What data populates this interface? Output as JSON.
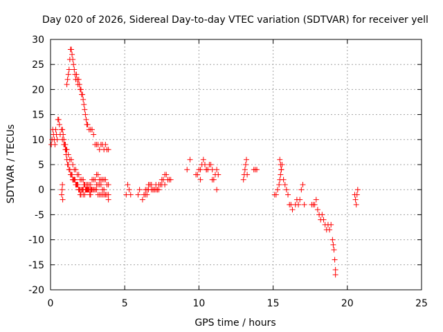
{
  "chart_data": {
    "type": "scatter",
    "title": "Day 020 of 2026, Sidereal Day-to-day VTEC variation (SDTVAR) for receiver yell",
    "xlabel": "GPS time / hours",
    "ylabel": "SDTVAR / TECUs",
    "xlim": [
      0,
      25
    ],
    "ylim": [
      -20,
      30
    ],
    "xticks": [
      0,
      5,
      10,
      15,
      20,
      25
    ],
    "yticks": [
      -20,
      -15,
      -10,
      -5,
      0,
      5,
      10,
      15,
      20,
      25,
      30
    ],
    "grid": true,
    "marker": "+",
    "color": "#ff0000",
    "series": [
      {
        "name": "SDTVAR",
        "x": [
          0.05,
          0.1,
          0.15,
          0.2,
          0.25,
          0.3,
          0.35,
          0.4,
          0.45,
          0.5,
          0.55,
          0.6,
          0.65,
          0.75,
          0.8,
          0.85,
          0.9,
          0.95,
          1.0,
          1.05,
          1.1,
          1.15,
          1.2,
          1.25,
          1.3,
          1.35,
          1.4,
          1.45,
          1.5,
          1.55,
          1.6,
          1.65,
          1.7,
          1.75,
          1.8,
          1.85,
          1.9,
          1.95,
          2.0,
          2.05,
          2.1,
          2.15,
          2.2,
          2.25,
          2.3,
          2.35,
          2.4,
          2.45,
          2.5,
          2.55,
          2.6,
          2.65,
          2.7,
          2.75,
          2.8,
          2.9,
          3.0,
          3.1,
          3.2,
          3.3,
          3.4,
          3.5,
          3.6,
          3.7,
          3.8,
          3.9,
          1.1,
          1.15,
          1.2,
          1.25,
          1.3,
          1.35,
          1.4,
          1.45,
          1.5,
          1.55,
          1.6,
          1.65,
          1.7,
          1.75,
          1.8,
          1.85,
          1.9,
          1.95,
          2.0,
          2.05,
          2.1,
          2.15,
          2.2,
          2.25,
          2.3,
          2.35,
          2.4,
          2.45,
          2.5,
          2.6,
          2.7,
          2.8,
          2.9,
          3.0,
          3.1,
          3.2,
          3.3,
          3.4,
          3.5,
          3.6,
          3.7,
          3.8,
          3.9,
          0.8,
          0.9,
          1.0,
          1.05,
          1.1,
          1.2,
          1.3,
          1.4,
          1.5,
          1.6,
          1.7,
          1.8,
          1.9,
          2.0,
          2.1,
          2.2,
          2.3,
          2.4,
          2.5,
          2.6,
          2.7,
          2.8,
          2.9,
          3.0,
          3.1,
          3.2,
          3.3,
          3.4,
          3.5,
          3.6,
          3.7,
          3.8,
          3.9,
          1.5,
          1.6,
          1.7,
          1.8,
          1.9,
          2.0,
          2.1,
          2.2,
          2.3,
          2.4,
          2.5,
          2.6,
          2.7,
          2.8,
          2.9,
          3.0,
          3.1,
          3.2,
          3.3,
          3.4,
          3.5,
          3.6,
          3.7,
          3.8,
          3.9,
          0.75,
          0.78,
          0.8,
          0.82,
          5.1,
          5.2,
          5.3,
          5.4,
          5.9,
          6.0,
          6.2,
          6.3,
          6.4,
          6.5,
          6.6,
          6.7,
          6.8,
          6.9,
          7.0,
          7.1,
          7.2,
          7.3,
          7.4,
          7.5,
          7.6,
          7.7,
          7.8,
          7.9,
          8.0,
          8.1,
          6.3,
          6.5,
          6.7,
          6.9,
          7.1,
          7.3,
          7.5,
          7.7,
          6.4,
          6.6,
          6.8,
          7.0,
          7.2,
          9.2,
          9.4,
          9.8,
          9.9,
          10.0,
          10.1,
          10.2,
          10.3,
          10.4,
          10.5,
          10.6,
          10.7,
          10.8,
          10.9,
          11.0,
          11.1,
          11.2,
          11.3,
          10.1,
          10.5,
          10.9,
          11.2,
          13.0,
          13.05,
          13.1,
          13.15,
          13.2,
          13.25,
          13.7,
          13.8,
          13.9,
          15.1,
          15.2,
          15.3,
          15.4,
          15.45,
          15.5,
          15.55,
          15.6,
          15.7,
          15.8,
          15.9,
          16.0,
          16.1,
          16.2,
          16.3,
          16.5,
          16.6,
          16.7,
          16.8,
          16.9,
          17.0,
          17.1,
          15.45,
          15.5,
          15.55,
          17.6,
          17.7,
          17.8,
          17.9,
          18.0,
          18.1,
          18.2,
          18.3,
          18.4,
          18.5,
          18.6,
          18.7,
          18.8,
          18.9,
          19.0,
          19.05,
          19.1,
          19.15,
          19.2,
          19.2,
          20.5,
          20.55,
          20.6,
          20.65,
          20.7
        ],
        "y": [
          9,
          10,
          12,
          11,
          10,
          9,
          12,
          11,
          10,
          14,
          14,
          13,
          11,
          12,
          12,
          11,
          10,
          9,
          8,
          7,
          6,
          5,
          5,
          4,
          4,
          3,
          3,
          3,
          2,
          2,
          2,
          2,
          1,
          1,
          1,
          1,
          0,
          0,
          -1,
          -1,
          0,
          0,
          0,
          1,
          1,
          0,
          0,
          0,
          0,
          0,
          0,
          -1,
          -1,
          0,
          0,
          0,
          0,
          1,
          1,
          1,
          1,
          0,
          0,
          -1,
          -1,
          -1,
          21,
          22,
          23,
          24,
          26,
          28,
          28,
          27,
          26,
          25,
          24,
          23,
          22,
          23,
          22,
          21,
          22,
          21,
          20,
          20,
          19,
          19,
          18,
          17,
          16,
          15,
          14,
          13,
          13,
          12,
          12,
          12,
          11,
          9,
          9,
          9,
          8,
          9,
          9,
          8,
          9,
          8,
          8,
          10,
          9,
          9,
          8,
          8,
          7,
          6,
          6,
          5,
          4,
          4,
          3,
          3,
          2,
          2,
          2,
          1,
          1,
          1,
          1,
          1,
          2,
          2,
          2,
          3,
          3,
          2,
          2,
          2,
          2,
          2,
          1,
          1,
          2,
          2,
          1,
          1,
          0,
          0,
          0,
          -1,
          -1,
          0,
          0,
          0,
          0,
          0,
          0,
          0,
          0,
          -1,
          -1,
          -1,
          -1,
          -1,
          -1,
          -1,
          -2,
          -1,
          0,
          1,
          -2,
          -1,
          1,
          0,
          -1,
          -1,
          0,
          -2,
          -1,
          -1,
          0,
          0,
          1,
          0,
          0,
          0,
          1,
          0,
          0,
          1,
          1,
          2,
          3,
          3,
          2,
          2,
          2,
          -1,
          -1,
          1,
          0,
          0,
          1,
          2,
          1,
          0,
          1,
          1,
          0,
          0,
          4,
          6,
          3,
          3,
          4,
          4,
          5,
          6,
          5,
          4,
          4,
          5,
          5,
          4,
          2,
          3,
          4,
          3,
          2,
          4,
          2,
          0,
          2,
          3,
          4,
          5,
          6,
          3,
          4,
          4,
          4,
          -1,
          -1,
          0,
          1,
          2,
          3,
          4,
          5,
          2,
          1,
          0,
          -1,
          -3,
          -3,
          -4,
          -3,
          -2,
          -3,
          -2,
          0,
          1,
          -3,
          6,
          5,
          4,
          -3,
          -3,
          -3,
          -2,
          -4,
          -5,
          -6,
          -5,
          -6,
          -7,
          -8,
          -7,
          -8,
          -7,
          -10,
          -11,
          -12,
          -14,
          -16,
          -17,
          -1,
          -2,
          -3,
          -1,
          0
        ]
      }
    ]
  }
}
